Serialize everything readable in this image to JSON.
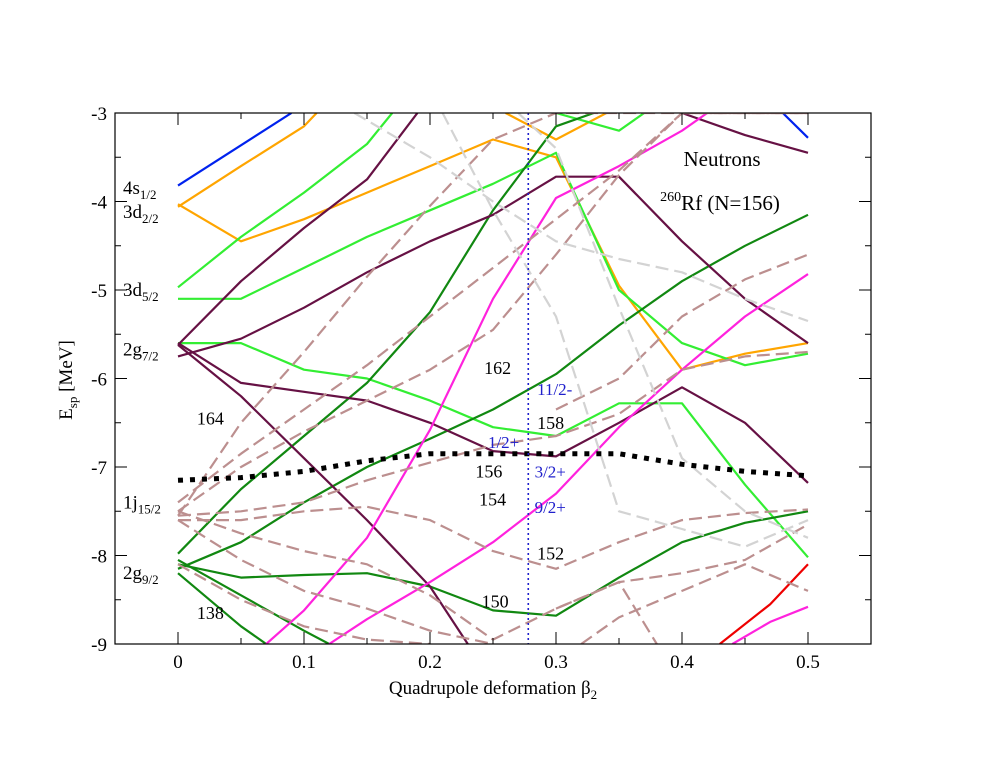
{
  "chart_data": {
    "type": "line",
    "title": "Neutrons",
    "nucleus": {
      "mass": "260",
      "symbol": "Rf (N=156)"
    },
    "xlabel": {
      "main": "Quadrupole deformation β",
      "sub": "2"
    },
    "ylabel": {
      "main": "E",
      "sub": "sp",
      "rest": " [MeV]"
    },
    "xlim": [
      -0.05,
      0.55
    ],
    "ylim": [
      -9,
      -3
    ],
    "xticks": [
      0,
      0.1,
      0.2,
      0.3,
      0.4,
      0.5
    ],
    "xtick_labels": [
      "0",
      "0.1",
      "0.2",
      "0.3",
      "0.4",
      "0.5"
    ],
    "yticks": [
      -3,
      -4,
      -5,
      -6,
      -7,
      -8,
      -9
    ],
    "ytick_labels": [
      "-3",
      "-4",
      "-5",
      "-6",
      "-7",
      "-8",
      "-9"
    ],
    "colors": {
      "blue": "#0022ee",
      "orange": "#ffa500",
      "lightgreen": "#33ee33",
      "darkgreen": "#118811",
      "purple": "#661144",
      "magenta": "#ff22dd",
      "tan": "#bc8f8f",
      "lightgray": "#d3d3d3",
      "red": "#ee0000",
      "fermi": "#000000",
      "marker": "#2020cc"
    },
    "marker_line": {
      "x": 0.278,
      "color_key": "marker"
    },
    "series": [
      {
        "name": "blue-1",
        "color_key": "blue",
        "style": "solid",
        "x": [
          0,
          0.09
        ],
        "y": [
          -3.82,
          -3.0
        ]
      },
      {
        "name": "blue-2",
        "color_key": "blue",
        "style": "solid",
        "x": [
          0.48,
          0.5
        ],
        "y": [
          -3.0,
          -3.28
        ]
      },
      {
        "name": "orange-1",
        "color_key": "orange",
        "style": "solid",
        "x": [
          0,
          0.05,
          0.1,
          0.15,
          0.2,
          0.25,
          0.3,
          0.35,
          0.4,
          0.45,
          0.5
        ],
        "y": [
          -4.03,
          -4.45,
          -4.2,
          -3.9,
          -3.6,
          -3.3,
          -3.5,
          -4.95,
          -5.9,
          -5.72,
          -5.6
        ]
      },
      {
        "name": "orange-2",
        "color_key": "orange",
        "style": "solid",
        "x": [
          0,
          0.05,
          0.1,
          0.11
        ],
        "y": [
          -4.06,
          -3.6,
          -3.15,
          -3.0
        ]
      },
      {
        "name": "orange-3",
        "color_key": "orange",
        "style": "solid",
        "x": [
          0.26,
          0.3,
          0.34
        ],
        "y": [
          -3.0,
          -3.3,
          -3.0
        ]
      },
      {
        "name": "lgreen-1",
        "color_key": "lightgreen",
        "style": "solid",
        "x": [
          0,
          0.05,
          0.1,
          0.15,
          0.17
        ],
        "y": [
          -4.97,
          -4.4,
          -3.9,
          -3.35,
          -3.0
        ]
      },
      {
        "name": "lgreen-2",
        "color_key": "lightgreen",
        "style": "solid",
        "x": [
          0,
          0.05,
          0.1,
          0.15,
          0.2,
          0.25,
          0.3,
          0.35,
          0.4,
          0.45,
          0.5
        ],
        "y": [
          -5.1,
          -5.1,
          -4.75,
          -4.4,
          -4.1,
          -3.8,
          -3.45,
          -5.0,
          -5.6,
          -5.85,
          -5.72
        ]
      },
      {
        "name": "lgreen-3",
        "color_key": "lightgreen",
        "style": "solid",
        "x": [
          0,
          0.05,
          0.1,
          0.15,
          0.2,
          0.25,
          0.3,
          0.35,
          0.4,
          0.45,
          0.5
        ],
        "y": [
          -5.6,
          -5.6,
          -5.9,
          -6.0,
          -6.25,
          -6.55,
          -6.65,
          -6.28,
          -6.28,
          -7.2,
          -8.02
        ]
      },
      {
        "name": "lgreen-4",
        "color_key": "lightgreen",
        "style": "solid",
        "x": [
          0.3,
          0.35,
          0.37
        ],
        "y": [
          -3.0,
          -3.2,
          -3.0
        ]
      },
      {
        "name": "dgreen-1",
        "color_key": "darkgreen",
        "style": "solid",
        "x": [
          0,
          0.05,
          0.1,
          0.15,
          0.2,
          0.25,
          0.3,
          0.33
        ],
        "y": [
          -7.98,
          -7.25,
          -6.65,
          -6.05,
          -5.25,
          -4.1,
          -3.15,
          -3.0
        ]
      },
      {
        "name": "dgreen-2",
        "color_key": "darkgreen",
        "style": "solid",
        "x": [
          0,
          0.05,
          0.1,
          0.15,
          0.2,
          0.25,
          0.3,
          0.35,
          0.4,
          0.45,
          0.5
        ],
        "y": [
          -8.15,
          -7.85,
          -7.4,
          -7.0,
          -6.68,
          -6.35,
          -5.95,
          -5.4,
          -4.9,
          -4.5,
          -4.15
        ]
      },
      {
        "name": "dgreen-3",
        "color_key": "darkgreen",
        "style": "solid",
        "x": [
          0,
          0.05,
          0.1,
          0.15,
          0.2,
          0.25,
          0.3,
          0.35,
          0.4,
          0.45,
          0.5
        ],
        "y": [
          -8.1,
          -8.25,
          -8.22,
          -8.2,
          -8.35,
          -8.62,
          -8.68,
          -8.25,
          -7.85,
          -7.63,
          -7.5
        ]
      },
      {
        "name": "dgreen-4",
        "color_key": "darkgreen",
        "style": "solid",
        "x": [
          0,
          0.05,
          0.1,
          0.12
        ],
        "y": [
          -8.05,
          -8.45,
          -8.85,
          -9.0
        ]
      },
      {
        "name": "dgreen-5",
        "color_key": "darkgreen",
        "style": "solid",
        "x": [
          0,
          0.05,
          0.07
        ],
        "y": [
          -8.2,
          -8.8,
          -9.0
        ]
      },
      {
        "name": "purple-1",
        "color_key": "purple",
        "style": "solid",
        "x": [
          0,
          0.05,
          0.1,
          0.15,
          0.2,
          0.25,
          0.3,
          0.35,
          0.4,
          0.45,
          0.5
        ],
        "y": [
          -5.75,
          -5.55,
          -5.2,
          -4.8,
          -4.45,
          -4.15,
          -3.72,
          -3.72,
          -4.45,
          -5.1,
          -5.6
        ]
      },
      {
        "name": "purple-2",
        "color_key": "purple",
        "style": "solid",
        "x": [
          0,
          0.05,
          0.1,
          0.15,
          0.2,
          0.25,
          0.3,
          0.35,
          0.4,
          0.45,
          0.5
        ],
        "y": [
          -5.6,
          -6.05,
          -6.15,
          -6.25,
          -6.5,
          -6.82,
          -6.88,
          -6.5,
          -6.1,
          -6.5,
          -7.18
        ]
      },
      {
        "name": "purple-3",
        "color_key": "purple",
        "style": "solid",
        "x": [
          0,
          0.05,
          0.1,
          0.15,
          0.19
        ],
        "y": [
          -5.62,
          -4.9,
          -4.3,
          -3.75,
          -3.0
        ]
      },
      {
        "name": "purple-4",
        "color_key": "purple",
        "style": "solid",
        "x": [
          0,
          0.05,
          0.1,
          0.15,
          0.2,
          0.23
        ],
        "y": [
          -5.62,
          -6.2,
          -6.9,
          -7.6,
          -8.35,
          -9.0
        ]
      },
      {
        "name": "purple-5",
        "color_key": "purple",
        "style": "solid",
        "x": [
          0.4,
          0.45,
          0.5
        ],
        "y": [
          -3.0,
          -3.25,
          -3.45
        ]
      },
      {
        "name": "magenta-1",
        "color_key": "magenta",
        "style": "solid",
        "x": [
          0.07,
          0.1,
          0.15,
          0.2,
          0.25,
          0.3,
          0.35,
          0.4,
          0.42
        ],
        "y": [
          -9.0,
          -8.62,
          -7.8,
          -6.58,
          -5.1,
          -3.96,
          -3.6,
          -3.2,
          -3.0
        ]
      },
      {
        "name": "magenta-2",
        "color_key": "magenta",
        "style": "solid",
        "x": [
          0.12,
          0.15,
          0.2,
          0.25,
          0.3,
          0.35,
          0.4,
          0.45,
          0.5
        ],
        "y": [
          -9.0,
          -8.72,
          -8.3,
          -7.85,
          -7.3,
          -6.55,
          -5.9,
          -5.3,
          -4.82
        ]
      },
      {
        "name": "magenta-3",
        "color_key": "magenta",
        "style": "solid",
        "x": [
          0.44,
          0.47,
          0.5
        ],
        "y": [
          -9.0,
          -8.75,
          -8.58
        ]
      },
      {
        "name": "red-1",
        "color_key": "red",
        "style": "solid",
        "x": [
          0.43,
          0.47,
          0.5
        ],
        "y": [
          -9.0,
          -8.55,
          -8.1
        ]
      },
      {
        "name": "tan-1",
        "color_key": "tan",
        "style": "dashed",
        "x": [
          0,
          0.05,
          0.1,
          0.15,
          0.2,
          0.25,
          0.3,
          0.35,
          0.4,
          0.45,
          0.5
        ],
        "y": [
          -7.55,
          -7.5,
          -7.4,
          -7.15,
          -6.95,
          -6.75,
          -6.65,
          -6.4,
          -5.9,
          -5.75,
          -5.7
        ]
      },
      {
        "name": "tan-2",
        "color_key": "tan",
        "style": "dashed",
        "x": [
          0,
          0.05,
          0.1,
          0.15,
          0.2,
          0.25,
          0.3,
          0.35,
          0.4,
          0.45,
          0.5
        ],
        "y": [
          -7.6,
          -7.6,
          -7.5,
          -7.45,
          -7.6,
          -7.95,
          -8.15,
          -7.85,
          -7.6,
          -7.52,
          -7.48
        ]
      },
      {
        "name": "tan-3",
        "color_key": "tan",
        "style": "dashed",
        "x": [
          0,
          0.05,
          0.1,
          0.15,
          0.2,
          0.25,
          0.3,
          0.35,
          0.4,
          0.45,
          0.5
        ],
        "y": [
          -7.4,
          -6.85,
          -6.35,
          -5.85,
          -5.3,
          -4.75,
          -4.2,
          -3.65,
          -3.0,
          -3.0,
          -3.0
        ]
      },
      {
        "name": "tan-4",
        "color_key": "tan",
        "style": "dashed",
        "x": [
          0,
          0.05,
          0.1,
          0.15,
          0.2,
          0.25,
          0.3,
          0.35,
          0.4,
          0.45,
          0.5
        ],
        "y": [
          -7.5,
          -7.0,
          -6.6,
          -6.25,
          -5.9,
          -5.45,
          -4.6,
          -3.7,
          -3.0,
          -3.0,
          -3.0
        ]
      },
      {
        "name": "tan-5",
        "color_key": "tan",
        "style": "dashed",
        "x": [
          0,
          0.05,
          0.1,
          0.15,
          0.2,
          0.25,
          0.3,
          0.35,
          0.4,
          0.45,
          0.5
        ],
        "y": [
          -7.55,
          -6.5,
          -5.7,
          -4.85,
          -4.05,
          -3.3,
          -3.0,
          -3.0,
          -3.0,
          -3.0,
          -3.0
        ]
      },
      {
        "name": "tan-6",
        "color_key": "tan",
        "style": "dashed",
        "x": [
          0,
          0.05,
          0.1,
          0.15,
          0.2,
          0.25,
          0.3,
          0.35,
          0.4,
          0.45,
          0.5
        ],
        "y": [
          -7.5,
          -7.75,
          -7.95,
          -8.1,
          -8.45,
          -8.95,
          -8.6,
          -8.3,
          -8.2,
          -8.05,
          -7.65
        ]
      },
      {
        "name": "tan-7",
        "color_key": "tan",
        "style": "dashed",
        "x": [
          0,
          0.05,
          0.1,
          0.15,
          0.2,
          0.25
        ],
        "y": [
          -7.6,
          -8.05,
          -8.4,
          -8.6,
          -8.85,
          -9.0
        ]
      },
      {
        "name": "tan-8",
        "color_key": "tan",
        "style": "dashed",
        "x": [
          0,
          0.05,
          0.1,
          0.15,
          0.2
        ],
        "y": [
          -8.1,
          -8.5,
          -8.8,
          -8.95,
          -9.0
        ]
      },
      {
        "name": "tan-9",
        "color_key": "tan",
        "style": "dashed",
        "x": [
          0.3,
          0.35,
          0.4,
          0.45,
          0.5
        ],
        "y": [
          -6.35,
          -6.0,
          -5.3,
          -4.88,
          -4.6
        ]
      },
      {
        "name": "tan-10",
        "color_key": "tan",
        "style": "dashed",
        "x": [
          0.32,
          0.35,
          0.4,
          0.45,
          0.5
        ],
        "y": [
          -9.0,
          -8.7,
          -8.4,
          -8.1,
          -8.4
        ]
      },
      {
        "name": "tan-11",
        "color_key": "tan",
        "style": "dashed",
        "x": [
          0.3,
          0.35,
          0.38
        ],
        "y": [
          -8.6,
          -8.3,
          -9.0
        ]
      },
      {
        "name": "gray-1",
        "color_key": "lightgray",
        "style": "dashed",
        "x": [
          0.14,
          0.2,
          0.25,
          0.3,
          0.35,
          0.4,
          0.45,
          0.5
        ],
        "y": [
          -3.0,
          -3.5,
          -4.0,
          -4.45,
          -4.65,
          -4.8,
          -5.1,
          -5.35
        ]
      },
      {
        "name": "gray-2",
        "color_key": "lightgray",
        "style": "dashed",
        "x": [
          0.21,
          0.25,
          0.3,
          0.35,
          0.4,
          0.45,
          0.5
        ],
        "y": [
          -3.0,
          -4.1,
          -5.3,
          -7.5,
          -7.7,
          -7.9,
          -7.6
        ]
      },
      {
        "name": "gray-3",
        "color_key": "lightgray",
        "style": "dashed",
        "x": [
          0.27,
          0.3,
          0.35,
          0.4,
          0.45,
          0.5
        ],
        "y": [
          -3.0,
          -3.4,
          -5.2,
          -6.9,
          -7.5,
          -7.8
        ]
      }
    ],
    "fermi_level": {
      "x": [
        0,
        0.05,
        0.1,
        0.15,
        0.2,
        0.25,
        0.3,
        0.35,
        0.4,
        0.45,
        0.5
      ],
      "y": [
        -7.15,
        -7.12,
        -7.05,
        -6.93,
        -6.85,
        -6.85,
        -6.85,
        -6.85,
        -6.97,
        -7.05,
        -7.1
      ],
      "color_key": "fermi"
    },
    "orbital_labels": [
      {
        "main": "4s",
        "sub": "1/2",
        "y": -3.85
      },
      {
        "main": "3d",
        "sub": "2/2",
        "y": -4.12
      },
      {
        "main": "3d",
        "sub": "5/2",
        "y": -5.0
      },
      {
        "main": "2g",
        "sub": "7/2",
        "y": -5.67
      },
      {
        "main": "1j",
        "sub": "15/2",
        "y": -7.4
      },
      {
        "main": "2g",
        "sub": "9/2",
        "y": -8.2
      }
    ],
    "shell_gap_labels": [
      {
        "text": "164",
        "x": 0.015,
        "y": -6.45
      },
      {
        "text": "138",
        "x": 0.015,
        "y": -8.65
      },
      {
        "text": "162",
        "x": 0.243,
        "y": -5.88
      },
      {
        "text": "158",
        "x": 0.285,
        "y": -6.5
      },
      {
        "text": "156",
        "x": 0.236,
        "y": -7.05
      },
      {
        "text": "154",
        "x": 0.239,
        "y": -7.37
      },
      {
        "text": "152",
        "x": 0.285,
        "y": -7.98
      },
      {
        "text": "150",
        "x": 0.241,
        "y": -8.52
      }
    ],
    "state_labels": [
      {
        "text": "11/2-",
        "x": 0.285,
        "y": -6.12
      },
      {
        "text": "1/2+",
        "x": 0.246,
        "y": -6.72
      },
      {
        "text": "3/2+",
        "x": 0.283,
        "y": -7.05
      },
      {
        "text": "9/2+",
        "x": 0.283,
        "y": -7.45
      }
    ]
  }
}
